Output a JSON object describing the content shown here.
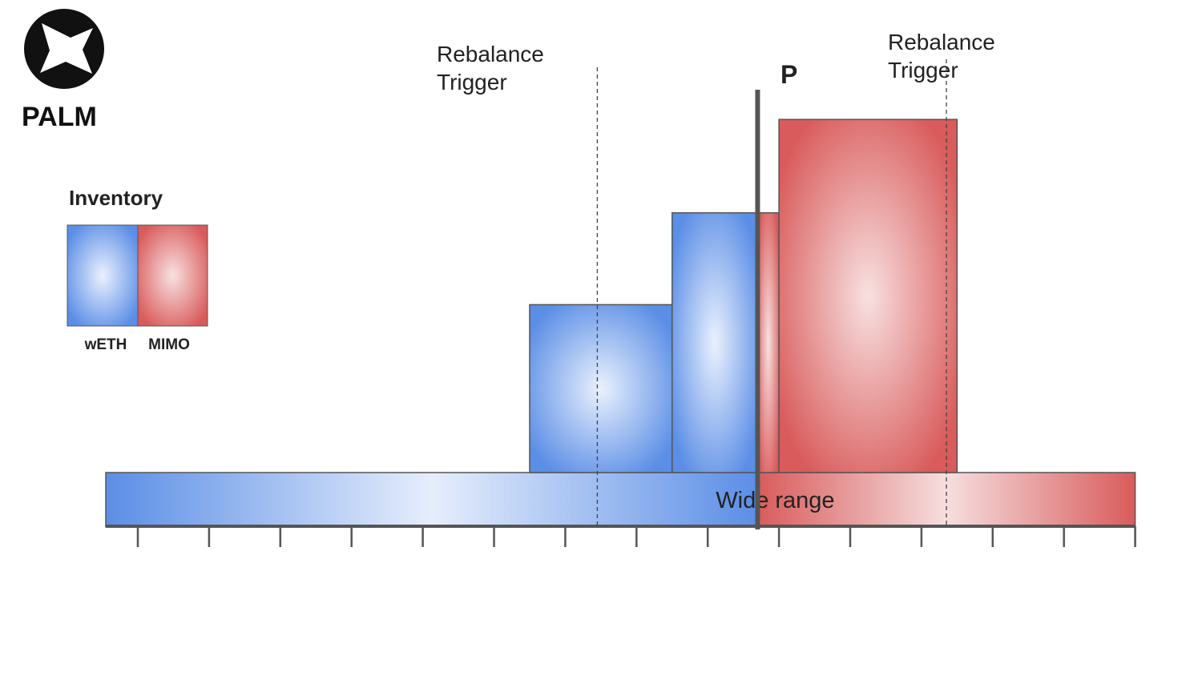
{
  "brand": {
    "name": "PALM",
    "logo_icon": "palm-star-icon"
  },
  "legend": {
    "title": "Inventory",
    "items": [
      {
        "label": "wETH",
        "color": "#5b8ee6"
      },
      {
        "label": "MIMO",
        "color": "#d95b5b"
      }
    ]
  },
  "triggers": [
    {
      "line1": "Rebalance",
      "line2": "Trigger",
      "tick": 6.45
    },
    {
      "line1": "Rebalance",
      "line2": "Trigger",
      "tick": 11.35
    }
  ],
  "price": {
    "label": "P",
    "tick": 8.7
  },
  "ticks": {
    "count": 15
  },
  "chart_data": {
    "type": "bar",
    "title": "",
    "xlabel": "",
    "ylabel": "",
    "x_range": [
      0,
      14
    ],
    "y_range": [
      0,
      5
    ],
    "price_position": 8.7,
    "ranges": [
      {
        "name": "Wide range",
        "from": -0.45,
        "to": 14,
        "height": 0.72,
        "layer": "base"
      },
      {
        "name": "",
        "from": 5.5,
        "to": 7.5,
        "height": 2.23,
        "layer": "stack"
      },
      {
        "name": "",
        "from": 7.5,
        "to": 9.0,
        "height": 3.45,
        "layer": "stack"
      },
      {
        "name": "",
        "from": 9.0,
        "to": 11.5,
        "height": 4.69,
        "layer": "stack"
      }
    ],
    "series": [
      {
        "name": "wETH",
        "color": "#5b8ee6"
      },
      {
        "name": "MIMO",
        "color": "#d95b5b"
      }
    ]
  }
}
